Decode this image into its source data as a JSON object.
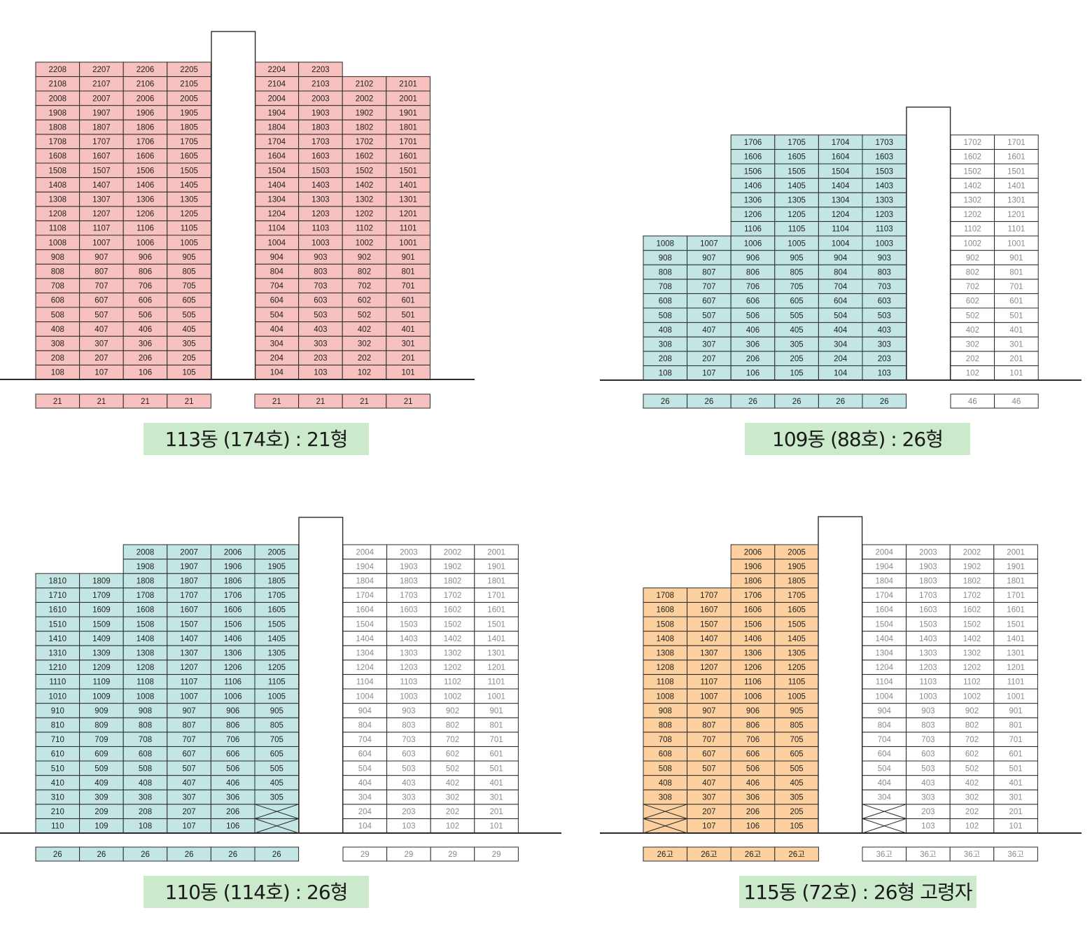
{
  "colors": {
    "pink": "#f7c1bf",
    "teal": "#c3e5e3",
    "orange": "#fcd09f",
    "white": "#ffffff",
    "title_bg": "#cbe9cb",
    "line": "#2a2a2a"
  },
  "buildings": [
    {
      "id": "113",
      "title": "113동 (174호) : 21형",
      "sections": [
        {
          "cols": [
            8,
            7,
            6,
            5
          ],
          "minFloor": 1,
          "maxFloor": 22,
          "color": "pink",
          "capFrom": {},
          "xcells": [],
          "footer": [
            "21",
            "21",
            "21",
            "21"
          ]
        },
        {
          "cols": [
            4,
            3,
            2,
            1
          ],
          "minFloor": 1,
          "maxFloor": 22,
          "color": "pink",
          "capFrom": {
            "2": 21,
            "1": 21
          },
          "xcells": [],
          "footer": [
            "21",
            "21",
            "21",
            "21"
          ]
        }
      ]
    },
    {
      "id": "109",
      "title": "109동 (88호) : 26형",
      "sections": [
        {
          "cols": [
            8,
            7,
            6,
            5,
            4,
            3
          ],
          "minFloor": 1,
          "maxFloor": 17,
          "color": "teal",
          "capFrom": {
            "8": 10,
            "7": 10
          },
          "xcells": [],
          "footer": [
            "26",
            "26",
            "26",
            "26",
            "26",
            "26"
          ]
        },
        {
          "cols": [
            2,
            1
          ],
          "minFloor": 1,
          "maxFloor": 17,
          "color": "white",
          "capFrom": {},
          "xcells": [],
          "footer": [
            "46",
            "46"
          ]
        }
      ]
    },
    {
      "id": "110",
      "title": "110동 (114호) : 26형",
      "sections": [
        {
          "cols": [
            10,
            9,
            8,
            7,
            6,
            5
          ],
          "minFloor": 1,
          "maxFloor": 20,
          "color": "teal",
          "capFrom": {
            "10": 18,
            "9": 18
          },
          "xcells": [
            "205",
            "105"
          ],
          "footer": [
            "26",
            "26",
            "26",
            "26",
            "26",
            "26"
          ]
        },
        {
          "cols": [
            4,
            3,
            2,
            1
          ],
          "minFloor": 1,
          "maxFloor": 20,
          "color": "white",
          "capFrom": {},
          "xcells": [],
          "footer": [
            "29",
            "29",
            "29",
            "29"
          ]
        }
      ]
    },
    {
      "id": "115",
      "title": "115동 (72호) : 26형 고령자",
      "sections": [
        {
          "cols": [
            8,
            7,
            6,
            5
          ],
          "minFloor": 1,
          "maxFloor": 20,
          "color": "orange",
          "capFrom": {
            "8": 17,
            "7": 17
          },
          "xcells": [
            "208",
            "108"
          ],
          "footer": [
            "26고",
            "26고",
            "26고",
            "26고"
          ]
        },
        {
          "cols": [
            4,
            3,
            2,
            1
          ],
          "minFloor": 1,
          "maxFloor": 20,
          "color": "white",
          "capFrom": {},
          "xcells": [
            "204",
            "104"
          ],
          "footer": [
            "36고",
            "36고",
            "36고",
            "36고"
          ]
        }
      ]
    }
  ]
}
